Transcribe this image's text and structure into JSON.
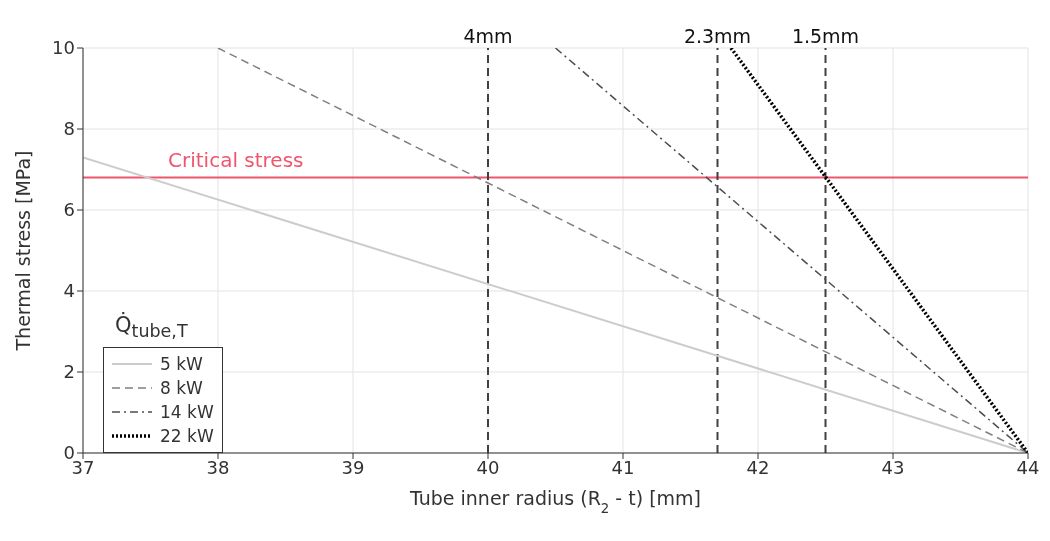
{
  "chart_data": {
    "type": "line",
    "xlabel": "Tube inner radius (R$_{2}$ - t)      [mm]",
    "ylabel": "Thermal stress    [MPa]",
    "legend_title": "Q̇$_{tube,T}$",
    "xlim": [
      37,
      44
    ],
    "ylim": [
      0,
      10
    ],
    "xticks": [
      37,
      38,
      39,
      40,
      41,
      42,
      43,
      44
    ],
    "yticks": [
      0,
      2,
      4,
      6,
      8,
      10
    ],
    "grid": true,
    "legend": "bottom left",
    "marker": "none",
    "series": [
      {
        "name": "5 kW",
        "color": "#cccccc",
        "line_style": "solid",
        "x": [
          37,
          44
        ],
        "values": [
          7.3,
          0
        ]
      },
      {
        "name": "8 kW",
        "color": "#808080",
        "line_style": "dashed",
        "x": [
          38,
          44
        ],
        "values": [
          10,
          0
        ]
      },
      {
        "name": "14 kW",
        "color": "#4d4d4d",
        "line_style": "dashdot",
        "x": [
          40.5,
          44
        ],
        "values": [
          10,
          0
        ]
      },
      {
        "name": "22 kW",
        "color": "#000000",
        "line_style": "dotted",
        "x": [
          41.8,
          44
        ],
        "values": [
          10,
          0
        ]
      }
    ],
    "ref_lines": [
      {
        "axis": "y",
        "value": 6.8,
        "label": "Critical stress",
        "color": "#f0546e",
        "line_style": "solid"
      },
      {
        "axis": "x",
        "value": 40,
        "label": "4mm",
        "color": "#404040",
        "line_style": "dashed"
      },
      {
        "axis": "x",
        "value": 41.7,
        "label": "2.3mm",
        "color": "#404040",
        "line_style": "dashed"
      },
      {
        "axis": "x",
        "value": 42.5,
        "label": "1.5mm",
        "color": "#404040",
        "line_style": "dashed"
      }
    ]
  }
}
